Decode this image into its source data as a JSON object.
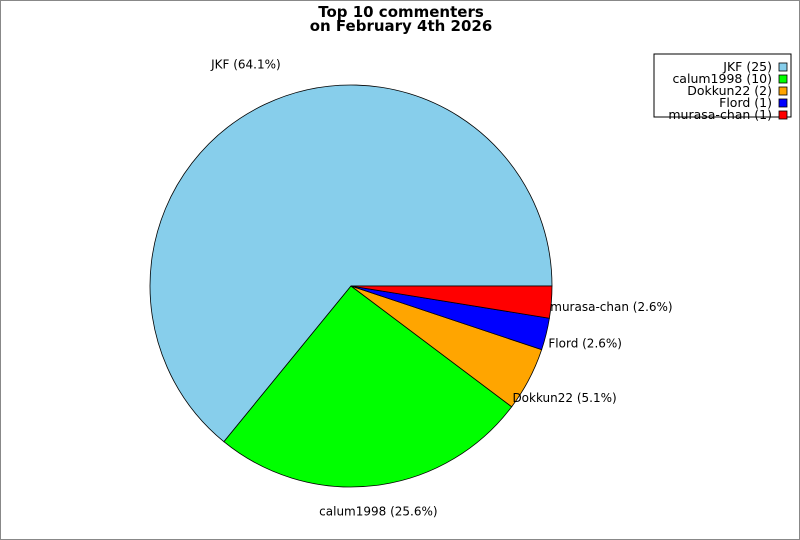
{
  "chart_data": {
    "type": "pie",
    "title": "Top 10 commenters\non February 4th 2026",
    "title_lines": [
      "Top 10 commenters",
      "on February 4th 2026"
    ],
    "legend_position": "top-right",
    "slices": [
      {
        "name": "JKF",
        "value": 25,
        "percent": 64.1,
        "color": "#87CEEB",
        "label": "JKF (64.1%)",
        "legend": "JKF (25)"
      },
      {
        "name": "calum1998",
        "value": 10,
        "percent": 25.6,
        "color": "#00FF00",
        "label": "calum1998 (25.6%)",
        "legend": "calum1998 (10)"
      },
      {
        "name": "Dokkun22",
        "value": 2,
        "percent": 5.1,
        "color": "#FFA500",
        "label": "Dokkun22 (5.1%)",
        "legend": "Dokkun22 (2)"
      },
      {
        "name": "Flord",
        "value": 1,
        "percent": 2.6,
        "color": "#0000FF",
        "label": "Flord (2.6%)",
        "legend": "Flord (1)"
      },
      {
        "name": "murasa-chan",
        "value": 1,
        "percent": 2.6,
        "color": "#FF0000",
        "label": "murasa-chan (2.6%)",
        "legend": "murasa-chan (1)"
      }
    ]
  }
}
